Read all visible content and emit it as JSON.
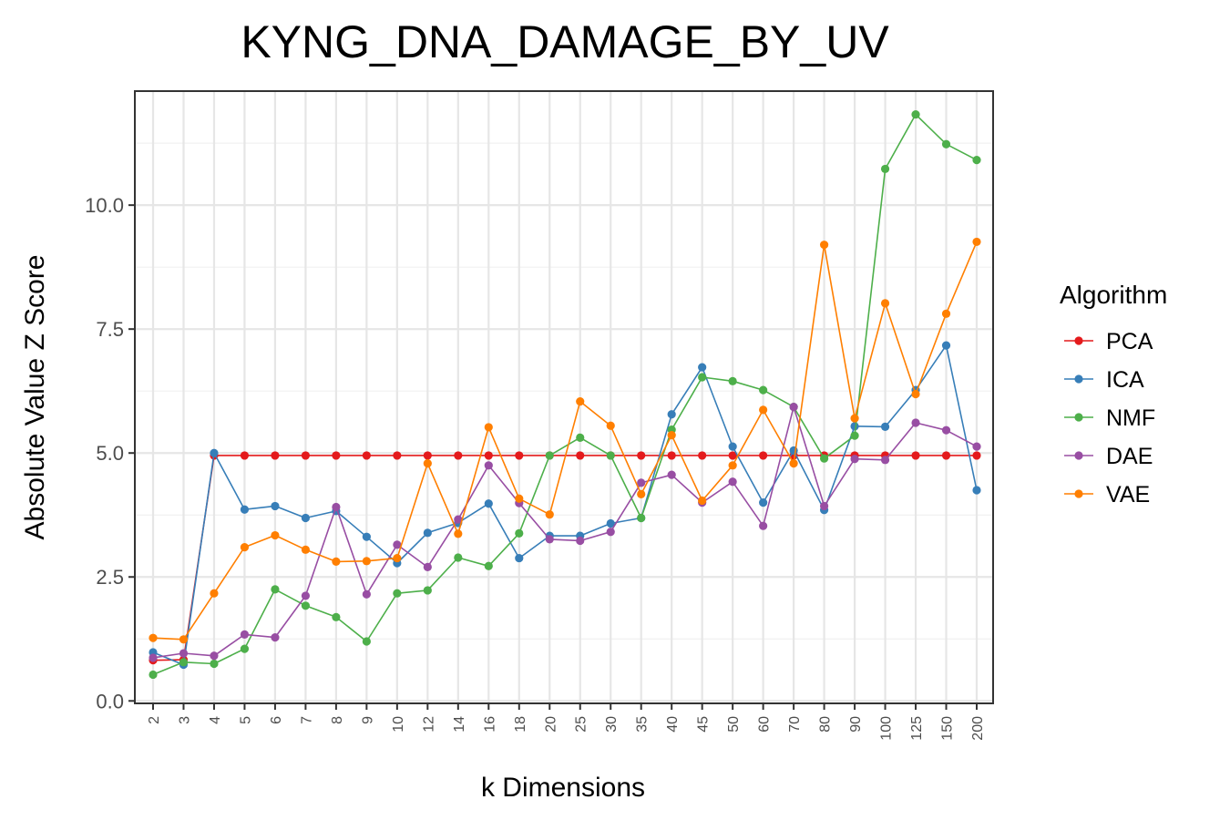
{
  "chart_data": {
    "type": "line",
    "title": "KYNG_DNA_DAMAGE_BY_UV",
    "xlabel": "k Dimensions",
    "ylabel": "Absolute Value Z Score",
    "categories": [
      "2",
      "3",
      "4",
      "5",
      "6",
      "7",
      "8",
      "9",
      "10",
      "12",
      "14",
      "16",
      "18",
      "20",
      "25",
      "30",
      "35",
      "40",
      "45",
      "50",
      "60",
      "70",
      "80",
      "90",
      "100",
      "125",
      "150",
      "200"
    ],
    "yticks": [
      "0.0",
      "2.5",
      "5.0",
      "7.5",
      "10.0"
    ],
    "ylim": [
      -0.05,
      12.3
    ],
    "grid": true,
    "legend_title": "Algorithm",
    "legend_position": "right",
    "series": [
      {
        "name": "PCA",
        "color": "#e41a1c",
        "values": [
          0.82,
          0.83,
          4.95,
          4.95,
          4.95,
          4.95,
          4.95,
          4.95,
          4.95,
          4.95,
          4.95,
          4.95,
          4.95,
          4.95,
          4.95,
          4.95,
          4.95,
          4.95,
          4.95,
          4.95,
          4.95,
          4.95,
          4.95,
          4.95,
          4.95,
          4.95,
          4.95,
          4.95
        ]
      },
      {
        "name": "ICA",
        "color": "#377eb8",
        "values": [
          0.98,
          0.73,
          5.0,
          3.86,
          3.93,
          3.69,
          3.83,
          3.31,
          2.78,
          3.39,
          3.59,
          3.98,
          2.88,
          3.33,
          3.33,
          3.58,
          3.69,
          5.78,
          6.73,
          5.13,
          4.0,
          5.05,
          3.85,
          5.54,
          5.53,
          6.27,
          7.17,
          4.25
        ]
      },
      {
        "name": "NMF",
        "color": "#4daf4a",
        "values": [
          0.53,
          0.78,
          0.75,
          1.05,
          2.25,
          1.92,
          1.69,
          1.2,
          2.17,
          2.23,
          2.89,
          2.72,
          3.38,
          4.95,
          5.31,
          4.95,
          3.69,
          5.47,
          6.53,
          6.45,
          6.27,
          5.93,
          4.89,
          5.35,
          10.73,
          11.83,
          11.23,
          10.91
        ]
      },
      {
        "name": "DAE",
        "color": "#984ea3",
        "values": [
          0.87,
          0.96,
          0.91,
          1.34,
          1.28,
          2.12,
          3.91,
          2.15,
          3.15,
          2.7,
          3.66,
          4.75,
          3.99,
          3.26,
          3.23,
          3.41,
          4.4,
          4.56,
          4.0,
          4.42,
          3.53,
          5.93,
          3.93,
          4.88,
          4.86,
          5.61,
          5.46,
          5.13
        ]
      },
      {
        "name": "VAE",
        "color": "#ff7f00",
        "values": [
          1.27,
          1.24,
          2.17,
          3.1,
          3.34,
          3.05,
          2.81,
          2.82,
          2.88,
          4.79,
          3.37,
          5.52,
          4.08,
          3.76,
          6.04,
          5.55,
          4.17,
          5.36,
          4.04,
          4.75,
          5.87,
          4.79,
          9.2,
          5.7,
          8.02,
          6.19,
          7.81,
          9.26
        ]
      }
    ]
  }
}
